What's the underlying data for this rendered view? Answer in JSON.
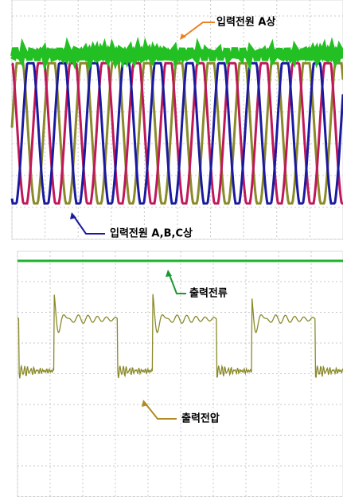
{
  "annotations": {
    "input_a": "입력전원 A상",
    "input_abc": "입력전원 A,B,C상",
    "output_current": "출력전류",
    "output_voltage": "출력전압"
  }
}
